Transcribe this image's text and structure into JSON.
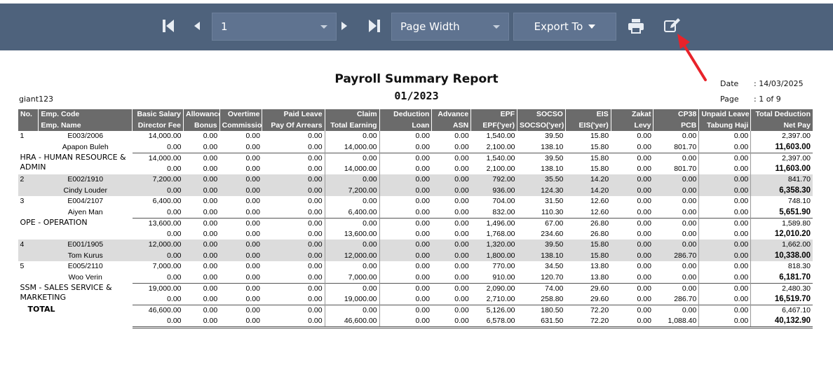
{
  "toolbar": {
    "page_value": "1",
    "zoom_value": "Page Width",
    "export_label": "Export To"
  },
  "colors": {
    "toolbar_bg": "#4e627c",
    "header_bg": "#6b6b6b",
    "row_shade": "#dcdcdc",
    "arrow": "#e8232a"
  },
  "report": {
    "title": "Payroll Summary Report",
    "period": "01/2023",
    "company": "giant123",
    "date_label": "Date",
    "date_value": ": 14/03/2025",
    "page_label": "Page",
    "page_value": ": 1 of 9"
  },
  "header_row1": [
    "No.",
    "Emp. Code",
    "Basic Salary",
    "Allowance",
    "Overtime",
    "Paid Leave",
    "Claim",
    "Deduction",
    "Advance",
    "EPF",
    "SOCSO",
    "EIS",
    "Zakat",
    "CP38",
    "Unpaid Leave",
    "Total Deduction"
  ],
  "header_row2": [
    "",
    "Emp. Name",
    "Director Fee",
    "Bonus",
    "Commission",
    "Pay Of Arrears",
    "Total Earning",
    "Loan",
    "ASN",
    "EPF('yer)",
    "SOCSO('yer)",
    "EIS('yer)",
    "Levy",
    "PCB",
    "Tabung Haji",
    "Net Pay"
  ],
  "rows": [
    {
      "kind": "emp",
      "shade": false,
      "no": "1",
      "code": "E003/2006",
      "name": "Apapon Buleh",
      "r1": [
        "14,000.00",
        "0.00",
        "0.00",
        "0.00",
        "0.00",
        "0.00",
        "0.00",
        "1,540.00",
        "39.50",
        "15.80",
        "0.00",
        "0.00",
        "0.00",
        "2,397.00"
      ],
      "r2": [
        "0.00",
        "0.00",
        "0.00",
        "0.00",
        "14,000.00",
        "0.00",
        "0.00",
        "2,100.00",
        "138.10",
        "15.80",
        "0.00",
        "801.70",
        "0.00",
        "11,603.00"
      ]
    },
    {
      "kind": "dept",
      "shade": false,
      "name": "HRA - HUMAN RESOURCE & ADMIN",
      "r1": [
        "14,000.00",
        "0.00",
        "0.00",
        "0.00",
        "0.00",
        "0.00",
        "0.00",
        "1,540.00",
        "39.50",
        "15.80",
        "0.00",
        "0.00",
        "0.00",
        "2,397.00"
      ],
      "r2": [
        "0.00",
        "0.00",
        "0.00",
        "0.00",
        "14,000.00",
        "0.00",
        "0.00",
        "2,100.00",
        "138.10",
        "15.80",
        "0.00",
        "801.70",
        "0.00",
        "11,603.00"
      ]
    },
    {
      "kind": "emp",
      "shade": true,
      "no": "2",
      "code": "E002/1910",
      "name": "Cindy Louder",
      "r1": [
        "7,200.00",
        "0.00",
        "0.00",
        "0.00",
        "0.00",
        "0.00",
        "0.00",
        "792.00",
        "35.50",
        "14.20",
        "0.00",
        "0.00",
        "0.00",
        "841.70"
      ],
      "r2": [
        "0.00",
        "0.00",
        "0.00",
        "0.00",
        "7,200.00",
        "0.00",
        "0.00",
        "936.00",
        "124.30",
        "14.20",
        "0.00",
        "0.00",
        "0.00",
        "6,358.30"
      ]
    },
    {
      "kind": "emp",
      "shade": false,
      "no": "3",
      "code": "E004/2107",
      "name": "Aiyen Man",
      "r1": [
        "6,400.00",
        "0.00",
        "0.00",
        "0.00",
        "0.00",
        "0.00",
        "0.00",
        "704.00",
        "31.50",
        "12.60",
        "0.00",
        "0.00",
        "0.00",
        "748.10"
      ],
      "r2": [
        "0.00",
        "0.00",
        "0.00",
        "0.00",
        "6,400.00",
        "0.00",
        "0.00",
        "832.00",
        "110.30",
        "12.60",
        "0.00",
        "0.00",
        "0.00",
        "5,651.90"
      ]
    },
    {
      "kind": "dept",
      "shade": false,
      "name": "OPE - OPERATION",
      "r1": [
        "13,600.00",
        "0.00",
        "0.00",
        "0.00",
        "0.00",
        "0.00",
        "0.00",
        "1,496.00",
        "67.00",
        "26.80",
        "0.00",
        "0.00",
        "0.00",
        "1,589.80"
      ],
      "r2": [
        "0.00",
        "0.00",
        "0.00",
        "0.00",
        "13,600.00",
        "0.00",
        "0.00",
        "1,768.00",
        "234.60",
        "26.80",
        "0.00",
        "0.00",
        "0.00",
        "12,010.20"
      ]
    },
    {
      "kind": "emp",
      "shade": true,
      "no": "4",
      "code": "E001/1905",
      "name": "Tom Kurus",
      "r1": [
        "12,000.00",
        "0.00",
        "0.00",
        "0.00",
        "0.00",
        "0.00",
        "0.00",
        "1,320.00",
        "39.50",
        "15.80",
        "0.00",
        "0.00",
        "0.00",
        "1,662.00"
      ],
      "r2": [
        "0.00",
        "0.00",
        "0.00",
        "0.00",
        "12,000.00",
        "0.00",
        "0.00",
        "1,800.00",
        "138.10",
        "15.80",
        "0.00",
        "286.70",
        "0.00",
        "10,338.00"
      ]
    },
    {
      "kind": "emp",
      "shade": false,
      "no": "5",
      "code": "E005/2110",
      "name": "Woo Verin",
      "r1": [
        "7,000.00",
        "0.00",
        "0.00",
        "0.00",
        "0.00",
        "0.00",
        "0.00",
        "770.00",
        "34.50",
        "13.80",
        "0.00",
        "0.00",
        "0.00",
        "818.30"
      ],
      "r2": [
        "0.00",
        "0.00",
        "0.00",
        "0.00",
        "7,000.00",
        "0.00",
        "0.00",
        "910.00",
        "120.70",
        "13.80",
        "0.00",
        "0.00",
        "0.00",
        "6,181.70"
      ]
    },
    {
      "kind": "dept",
      "shade": false,
      "name": "SSM - SALES SERVICE & MARKETING",
      "r1": [
        "19,000.00",
        "0.00",
        "0.00",
        "0.00",
        "0.00",
        "0.00",
        "0.00",
        "2,090.00",
        "74.00",
        "29.60",
        "0.00",
        "0.00",
        "0.00",
        "2,480.30"
      ],
      "r2": [
        "0.00",
        "0.00",
        "0.00",
        "0.00",
        "19,000.00",
        "0.00",
        "0.00",
        "2,710.00",
        "258.80",
        "29.60",
        "0.00",
        "286.70",
        "0.00",
        "16,519.70"
      ]
    },
    {
      "kind": "total",
      "shade": false,
      "name": "TOTAL",
      "r1": [
        "46,600.00",
        "0.00",
        "0.00",
        "0.00",
        "0.00",
        "0.00",
        "0.00",
        "5,126.00",
        "180.50",
        "72.20",
        "0.00",
        "0.00",
        "0.00",
        "6,467.10"
      ],
      "r2": [
        "0.00",
        "0.00",
        "0.00",
        "0.00",
        "46,600.00",
        "0.00",
        "0.00",
        "6,578.00",
        "631.50",
        "72.20",
        "0.00",
        "1,088.40",
        "0.00",
        "40,132.90"
      ]
    }
  ]
}
